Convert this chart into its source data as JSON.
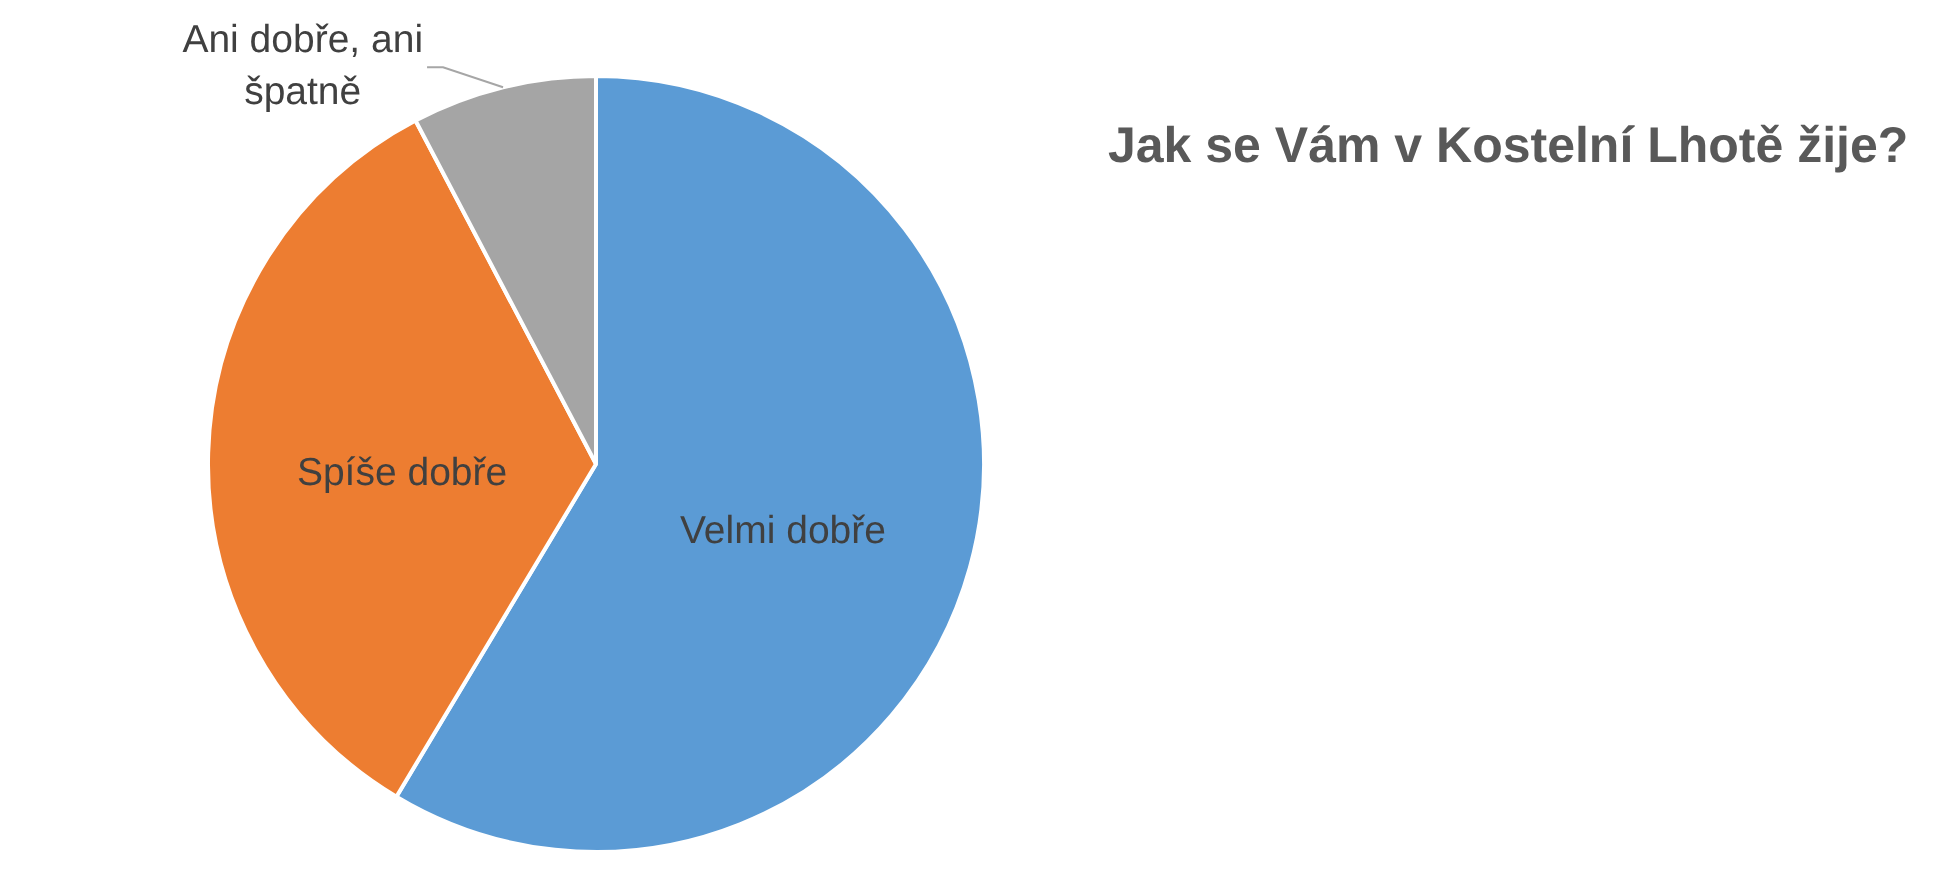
{
  "chart_data": {
    "type": "pie",
    "title": "Jak se Vám v Kostelní Lhotě žije?",
    "categories": [
      "Velmi dobře",
      "Spíše dobře",
      "Ani dobře, ani špatně"
    ],
    "values": [
      58.6,
      33.7,
      7.7
    ],
    "colors": [
      "#5b9bd5",
      "#ed7d31",
      "#a5a5a5"
    ],
    "legend": false
  }
}
